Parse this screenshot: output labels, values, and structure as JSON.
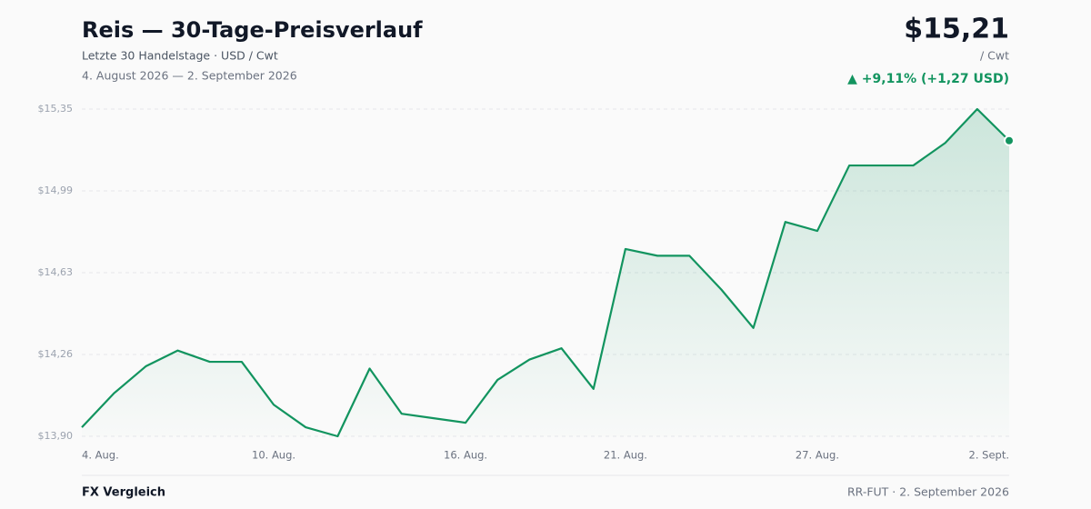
{
  "header": {
    "title": "Reis — 30-Tage-Preisverlauf",
    "subtitle": "Letzte 30 Handelstage · USD / Cwt",
    "date_range": "4. August 2026 — 2. September 2026",
    "price": "$15,21",
    "unit": "/ Cwt",
    "change": "▲ +9,11% (+1,27 USD)"
  },
  "chart_data": {
    "type": "line",
    "color": "#12945f",
    "grid": true,
    "categories": [
      "4. Aug.",
      null,
      null,
      null,
      null,
      null,
      "10. Aug.",
      null,
      null,
      null,
      null,
      null,
      "16. Aug.",
      null,
      null,
      null,
      null,
      "21. Aug.",
      null,
      null,
      null,
      null,
      null,
      "27. Aug.",
      null,
      null,
      null,
      null,
      null,
      "2. Sept."
    ],
    "values": [
      13.94,
      14.09,
      14.21,
      14.28,
      14.23,
      14.23,
      14.04,
      13.94,
      13.9,
      14.2,
      14.0,
      13.98,
      13.96,
      14.15,
      14.24,
      14.29,
      14.11,
      14.73,
      14.7,
      14.7,
      14.55,
      14.38,
      14.85,
      14.81,
      15.1,
      15.1,
      15.1,
      15.2,
      15.35,
      15.21
    ],
    "ylim": [
      13.9,
      15.35
    ],
    "yticks": [
      {
        "value": 13.9,
        "label": "$13,90"
      },
      {
        "value": 14.2625,
        "label": "$14,26"
      },
      {
        "value": 14.625,
        "label": "$14,63"
      },
      {
        "value": 14.9875,
        "label": "$14,99"
      },
      {
        "value": 15.35,
        "label": "$15,35"
      }
    ]
  },
  "footer": {
    "left": "FX Vergleich",
    "right": "RR-FUT · 2. September 2026"
  }
}
